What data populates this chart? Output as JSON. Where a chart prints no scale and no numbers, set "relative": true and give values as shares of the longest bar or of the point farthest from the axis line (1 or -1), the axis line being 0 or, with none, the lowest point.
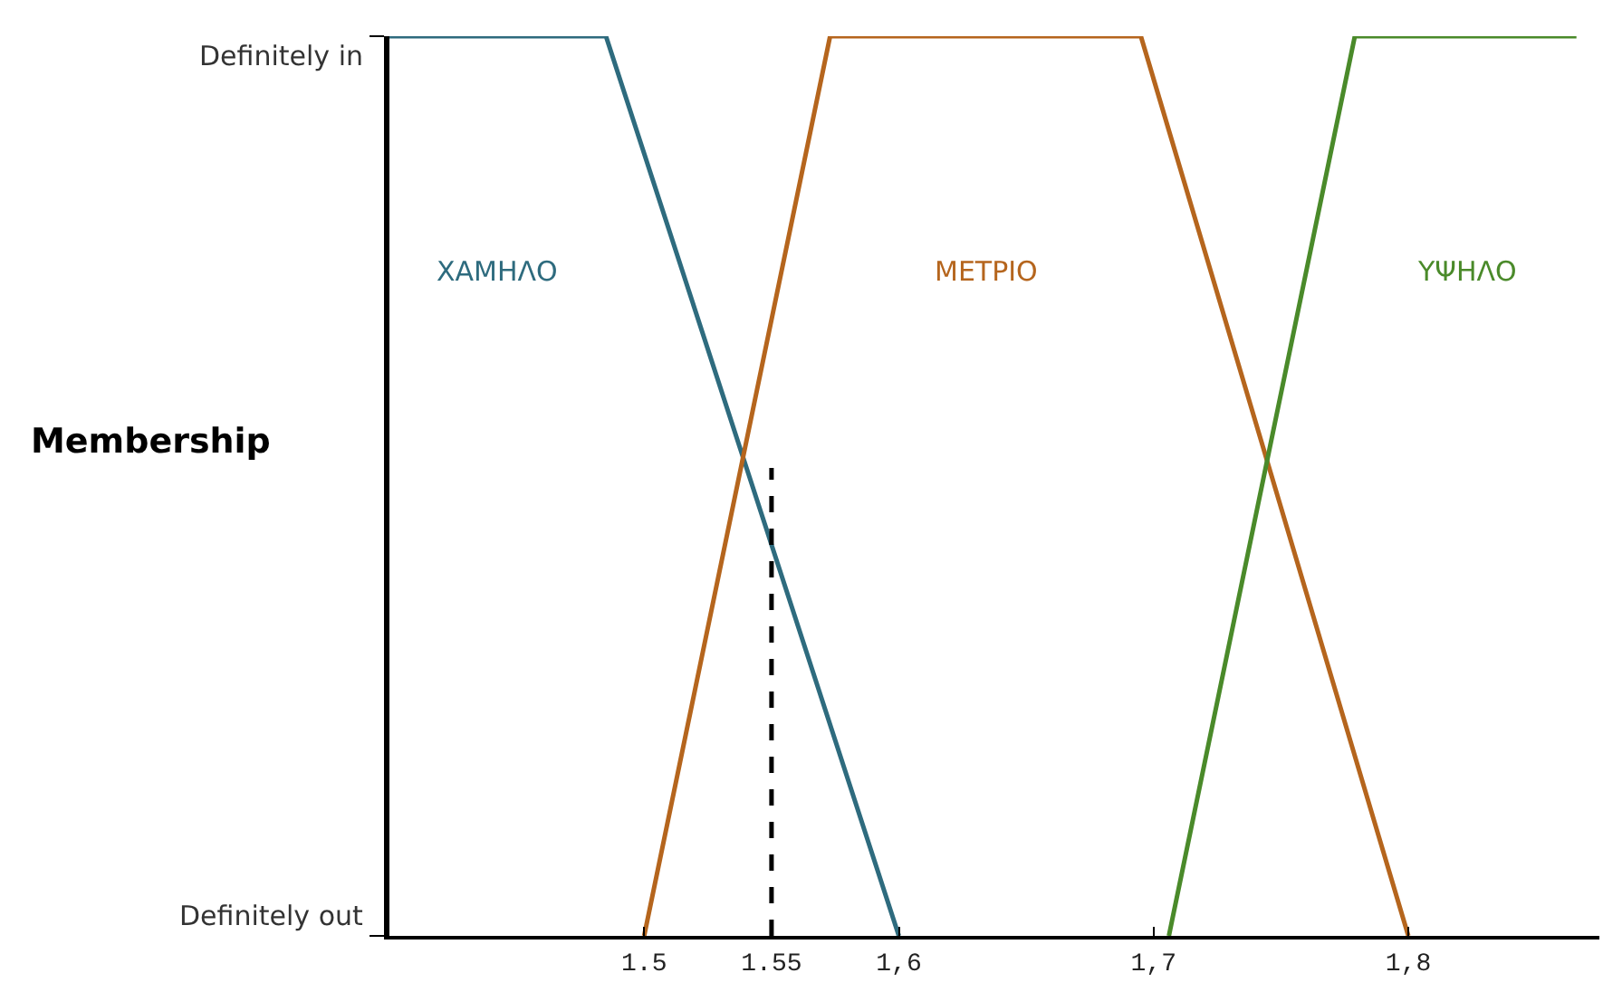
{
  "chart_data": {
    "type": "line",
    "ylabel": "Membership",
    "xlim": [
      1.4,
      1.875
    ],
    "xticks": [
      1.5,
      1.55,
      {
        "value": 1.6,
        "label": "1,6"
      },
      {
        "value": 1.7,
        "label": "1,7"
      },
      {
        "value": 1.8,
        "label": "1,8"
      }
    ],
    "relative": true,
    "annotations": [
      "Definitely in",
      "Definitely out"
    ],
    "grid": false,
    "legend": false,
    "marker": "none",
    "series": [
      {
        "name": "ΧΑΜΗΛΟ",
        "color": "#2e6b7e",
        "x": [
          1.4,
          1.485,
          1.6
        ],
        "values": [
          1,
          1,
          0
        ]
      },
      {
        "name": "ΜΕΤΡΙΟ",
        "color": "#b5651d",
        "x": [
          1.5,
          1.573,
          1.695,
          1.8
        ],
        "values": [
          0,
          1,
          1,
          0
        ]
      },
      {
        "name": "ΥΨΗΛΟ",
        "color": "#4a8a2a",
        "x": [
          1.706,
          1.779,
          1.866
        ],
        "values": [
          0,
          1,
          1
        ]
      },
      {
        "color": "#000000",
        "line_style": "dashed",
        "x": [
          1.55,
          1.55
        ],
        "values": [
          0,
          0.52
        ]
      }
    ]
  }
}
